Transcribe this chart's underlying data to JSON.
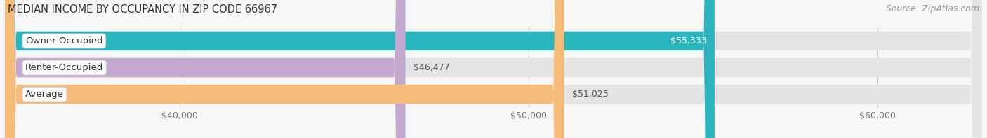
{
  "title": "MEDIAN INCOME BY OCCUPANCY IN ZIP CODE 66967",
  "source": "Source: ZipAtlas.com",
  "categories": [
    "Owner-Occupied",
    "Renter-Occupied",
    "Average"
  ],
  "values": [
    55333,
    46477,
    51025
  ],
  "bar_colors": [
    "#2ab5be",
    "#c4a8d0",
    "#f4bc78"
  ],
  "value_labels": [
    "$55,333",
    "$46,477",
    "$51,025"
  ],
  "value_inside": [
    true,
    false,
    false
  ],
  "value_colors_inside": [
    "#ffffff",
    "#555555",
    "#555555"
  ],
  "xlim_min": 35000,
  "xlim_max": 63000,
  "xticks": [
    40000,
    50000,
    60000
  ],
  "xtick_labels": [
    "$40,000",
    "$50,000",
    "$60,000"
  ],
  "bar_height": 0.72,
  "bar_gap": 0.12,
  "background_color": "#f7f7f7",
  "bar_bg_color": "#e4e4e4",
  "title_fontsize": 10.5,
  "source_fontsize": 9,
  "label_fontsize": 9.5,
  "value_fontsize": 9,
  "tick_fontsize": 9,
  "grid_color": "#d0d0d0",
  "label_box_color": "#ffffff",
  "label_text_color": "#333333",
  "tick_color": "#777777"
}
